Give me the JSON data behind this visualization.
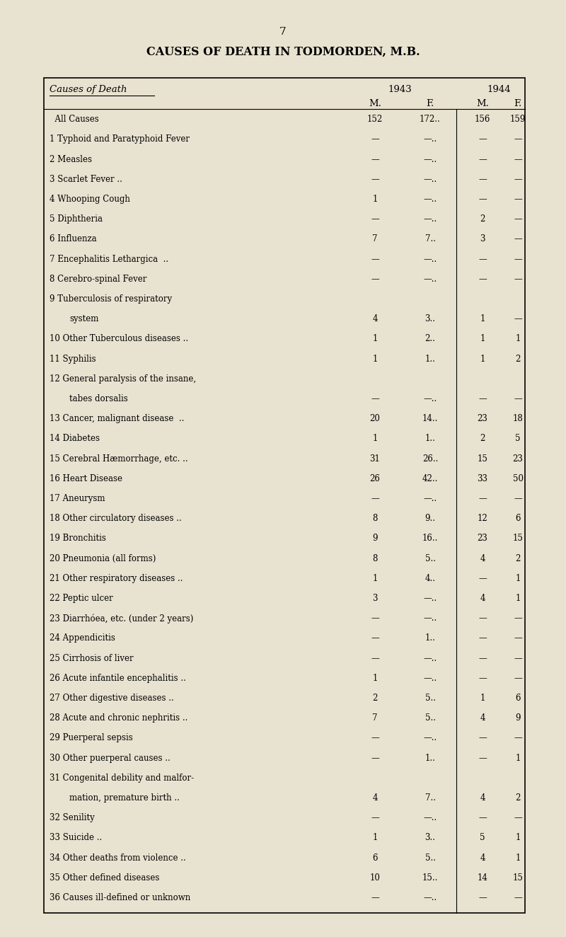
{
  "page_number": "7",
  "main_title": "CAUSES OF DEATH IN TODMORDEN, M.B.",
  "bg_color": "#e8e2d0",
  "year1": "1943",
  "year2": "1944",
  "rows": [
    {
      "label": "All Causes",
      "prefix": "  ",
      "m1": "152",
      "f1": "172..",
      "m2": "156",
      "f2": "159",
      "indent": false,
      "dots_in_label": true
    },
    {
      "label": "Typhoid and Paratyphoid Fever",
      "prefix": "1 ",
      "m1": "—",
      "f1": "—..",
      "m2": "—",
      "f2": "—",
      "indent": false,
      "dots_in_label": false
    },
    {
      "label": "Measles",
      "prefix": "2 ",
      "m1": "—",
      "f1": "—..",
      "m2": "—",
      "f2": "—",
      "indent": false,
      "dots_in_label": true
    },
    {
      "label": "Scarlet Fever ..",
      "prefix": "3 ",
      "m1": "—",
      "f1": "—..",
      "m2": "—",
      "f2": "—",
      "indent": false,
      "dots_in_label": false
    },
    {
      "label": "Whooping Cough",
      "prefix": "4 ",
      "m1": "1",
      "f1": "—..",
      "m2": "—",
      "f2": "—",
      "indent": false,
      "dots_in_label": true
    },
    {
      "label": "Diphtheria",
      "prefix": "5 ",
      "m1": "—",
      "f1": "—..",
      "m2": "2",
      "f2": "—",
      "indent": false,
      "dots_in_label": true
    },
    {
      "label": "Influenza",
      "prefix": "6 ",
      "m1": "7",
      "f1": "7..",
      "m2": "3",
      "f2": "—",
      "indent": false,
      "dots_in_label": true
    },
    {
      "label": "Encephalitis Lethargica  ..",
      "prefix": "7 ",
      "m1": "—",
      "f1": "—..",
      "m2": "—",
      "f2": "—",
      "indent": false,
      "dots_in_label": false
    },
    {
      "label": "Cerebro-spinal Fever",
      "prefix": "8 ",
      "m1": "—",
      "f1": "—..",
      "m2": "—",
      "f2": "—",
      "indent": false,
      "dots_in_label": true
    },
    {
      "label": "Tuberculosis of respiratory",
      "prefix": "9 ",
      "m1": "",
      "f1": "",
      "m2": "",
      "f2": "",
      "indent": false,
      "dots_in_label": false
    },
    {
      "label": "system",
      "prefix": "",
      "m1": "4",
      "f1": "3..",
      "m2": "1",
      "f2": "—",
      "indent": true,
      "dots_in_label": true
    },
    {
      "label": "Other Tuberculous diseases ..",
      "prefix": "10 ",
      "m1": "1",
      "f1": "2..",
      "m2": "1",
      "f2": "1",
      "indent": false,
      "dots_in_label": false
    },
    {
      "label": "Syphilis",
      "prefix": "11 ",
      "m1": "1",
      "f1": "1..",
      "m2": "1",
      "f2": "2",
      "indent": false,
      "dots_in_label": true
    },
    {
      "label": "General paralysis of the insane,",
      "prefix": "12 ",
      "m1": "",
      "f1": "",
      "m2": "",
      "f2": "",
      "indent": false,
      "dots_in_label": false
    },
    {
      "label": "tabes dorsalis",
      "prefix": "",
      "m1": "—",
      "f1": "—..",
      "m2": "—",
      "f2": "—",
      "indent": true,
      "dots_in_label": false
    },
    {
      "label": "Cancer, malignant disease  ..",
      "prefix": "13 ",
      "m1": "20",
      "f1": "14..",
      "m2": "23",
      "f2": "18",
      "indent": false,
      "dots_in_label": false
    },
    {
      "label": "Diabetes",
      "prefix": "14 ",
      "m1": "1",
      "f1": "1..",
      "m2": "2",
      "f2": "5",
      "indent": false,
      "dots_in_label": true
    },
    {
      "label": "Cerebral Hæmorrhage, etc. ..",
      "prefix": "15 ",
      "m1": "31",
      "f1": "26..",
      "m2": "15",
      "f2": "23",
      "indent": false,
      "dots_in_label": false
    },
    {
      "label": "Heart Disease",
      "prefix": "16 ",
      "m1": "26",
      "f1": "42..",
      "m2": "33",
      "f2": "50",
      "indent": false,
      "dots_in_label": true
    },
    {
      "label": "Aneurysm",
      "prefix": "17 ",
      "m1": "—",
      "f1": "—..",
      "m2": "—",
      "f2": "—",
      "indent": false,
      "dots_in_label": true
    },
    {
      "label": "Other circulatory diseases ..",
      "prefix": "18 ",
      "m1": "8",
      "f1": "9..",
      "m2": "12",
      "f2": "6",
      "indent": false,
      "dots_in_label": false
    },
    {
      "label": "Bronchitis",
      "prefix": "19 ",
      "m1": "9",
      "f1": "16..",
      "m2": "23",
      "f2": "15",
      "indent": false,
      "dots_in_label": true
    },
    {
      "label": "Pneumonia (all forms)",
      "prefix": "20 ",
      "m1": "8",
      "f1": "5..",
      "m2": "4",
      "f2": "2",
      "indent": false,
      "dots_in_label": true
    },
    {
      "label": "Other respiratory diseases ..",
      "prefix": "21 ",
      "m1": "1",
      "f1": "4..",
      "m2": "—",
      "f2": "1",
      "indent": false,
      "dots_in_label": false
    },
    {
      "label": "Peptic ulcer",
      "prefix": "22 ",
      "m1": "3",
      "f1": "—..",
      "m2": "4",
      "f2": "1",
      "indent": false,
      "dots_in_label": true
    },
    {
      "label": "Diarrhóea, etc. (under 2 years)",
      "prefix": "23 ",
      "m1": "—",
      "f1": "—..",
      "m2": "—",
      "f2": "—",
      "indent": false,
      "dots_in_label": false
    },
    {
      "label": "Appendicitis",
      "prefix": "24 ",
      "m1": "—",
      "f1": "1..",
      "m2": "—",
      "f2": "—",
      "indent": false,
      "dots_in_label": true
    },
    {
      "label": "Cirrhosis of liver",
      "prefix": "25 ",
      "m1": "—",
      "f1": "—..",
      "m2": "—",
      "f2": "—",
      "indent": false,
      "dots_in_label": true
    },
    {
      "label": "Acute infantile encephalitis ..",
      "prefix": "26 ",
      "m1": "1",
      "f1": "—..",
      "m2": "—",
      "f2": "—",
      "indent": false,
      "dots_in_label": false
    },
    {
      "label": "Other digestive diseases ..",
      "prefix": "27 ",
      "m1": "2",
      "f1": "5..",
      "m2": "1",
      "f2": "6",
      "indent": false,
      "dots_in_label": false
    },
    {
      "label": "Acute and chronic nephritis ..",
      "prefix": "28 ",
      "m1": "7",
      "f1": "5..",
      "m2": "4",
      "f2": "9",
      "indent": false,
      "dots_in_label": false
    },
    {
      "label": "Puerperal sepsis",
      "prefix": "29 ",
      "m1": "—",
      "f1": "—..",
      "m2": "—",
      "f2": "—",
      "indent": false,
      "dots_in_label": true
    },
    {
      "label": "Other puerperal causes ..",
      "prefix": "30 ",
      "m1": "—",
      "f1": "1..",
      "m2": "—",
      "f2": "1",
      "indent": false,
      "dots_in_label": false
    },
    {
      "label": "Congenital debility and malfor-",
      "prefix": "31 ",
      "m1": "",
      "f1": "",
      "m2": "",
      "f2": "",
      "indent": false,
      "dots_in_label": false
    },
    {
      "label": "mation, premature birth ..",
      "prefix": "",
      "m1": "4",
      "f1": "7..",
      "m2": "4",
      "f2": "2",
      "indent": true,
      "dots_in_label": false
    },
    {
      "label": "Senility",
      "prefix": "32 ",
      "m1": "—",
      "f1": "—..",
      "m2": "—",
      "f2": "—",
      "indent": false,
      "dots_in_label": true
    },
    {
      "label": "Suicide ..",
      "prefix": "33 ",
      "m1": "1",
      "f1": "3..",
      "m2": "5",
      "f2": "1",
      "indent": false,
      "dots_in_label": false
    },
    {
      "label": "Other deaths from violence ..",
      "prefix": "34 ",
      "m1": "6",
      "f1": "5..",
      "m2": "4",
      "f2": "1",
      "indent": false,
      "dots_in_label": false
    },
    {
      "label": "Other defined diseases",
      "prefix": "35 ",
      "m1": "10",
      "f1": "15..",
      "m2": "14",
      "f2": "15",
      "indent": false,
      "dots_in_label": false
    },
    {
      "label": "Causes ill-defined or unknown",
      "prefix": "36 ",
      "m1": "—",
      "f1": "—..",
      "m2": "—",
      "f2": "—",
      "indent": false,
      "dots_in_label": false
    }
  ]
}
